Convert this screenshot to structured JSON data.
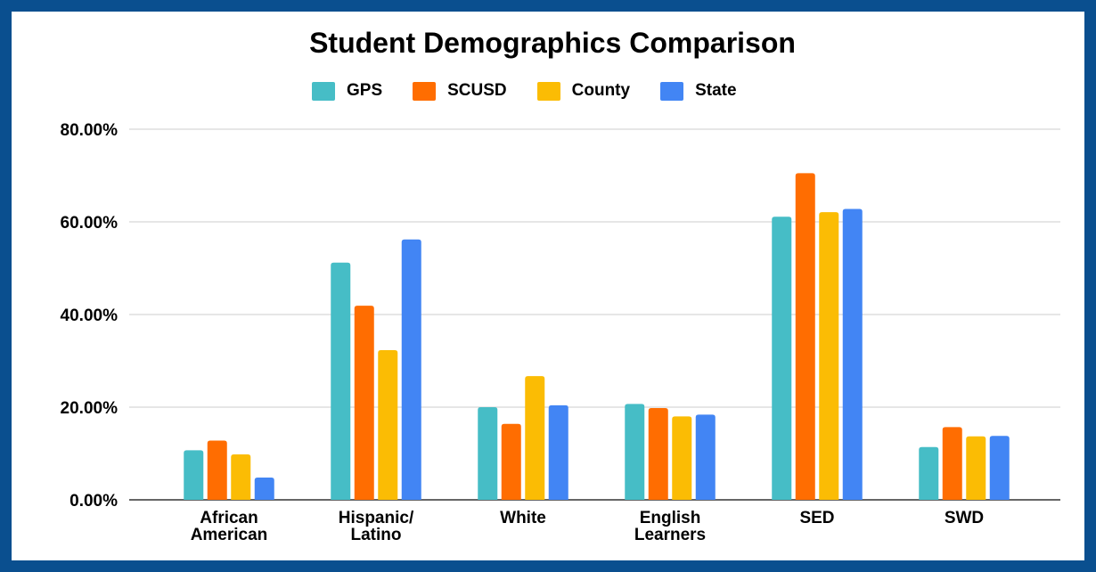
{
  "colors": {
    "background": "#0a4f8f",
    "panel": "#ffffff",
    "grid": "#cccccc",
    "axis": "#333333"
  },
  "chart_data": {
    "type": "bar",
    "title": "Student Demographics Comparison",
    "xlabel": "",
    "ylabel": "",
    "ylim": [
      0,
      80
    ],
    "yticks": [
      "0.00%",
      "20.00%",
      "40.00%",
      "60.00%",
      "80.00%"
    ],
    "ytick_values": [
      0,
      20,
      40,
      60,
      80
    ],
    "grid": true,
    "legend_position": "top",
    "categories": [
      [
        "African",
        "American"
      ],
      [
        "Hispanic/",
        "Latino"
      ],
      [
        "White"
      ],
      [
        "English",
        "Learners"
      ],
      [
        "SED"
      ],
      [
        "SWD"
      ]
    ],
    "series": [
      {
        "name": "GPS",
        "color": "#46bdc6",
        "values": [
          10.7,
          51.2,
          20.0,
          20.7,
          61.1,
          11.4
        ]
      },
      {
        "name": "SCUSD",
        "color": "#ff6d01",
        "values": [
          12.8,
          41.9,
          16.4,
          19.8,
          70.5,
          15.7
        ]
      },
      {
        "name": "County",
        "color": "#fbbc04",
        "values": [
          9.8,
          32.3,
          26.7,
          18.0,
          62.1,
          13.7
        ]
      },
      {
        "name": "State",
        "color": "#4285f4",
        "values": [
          4.8,
          56.2,
          20.4,
          18.4,
          62.8,
          13.8
        ]
      }
    ]
  }
}
